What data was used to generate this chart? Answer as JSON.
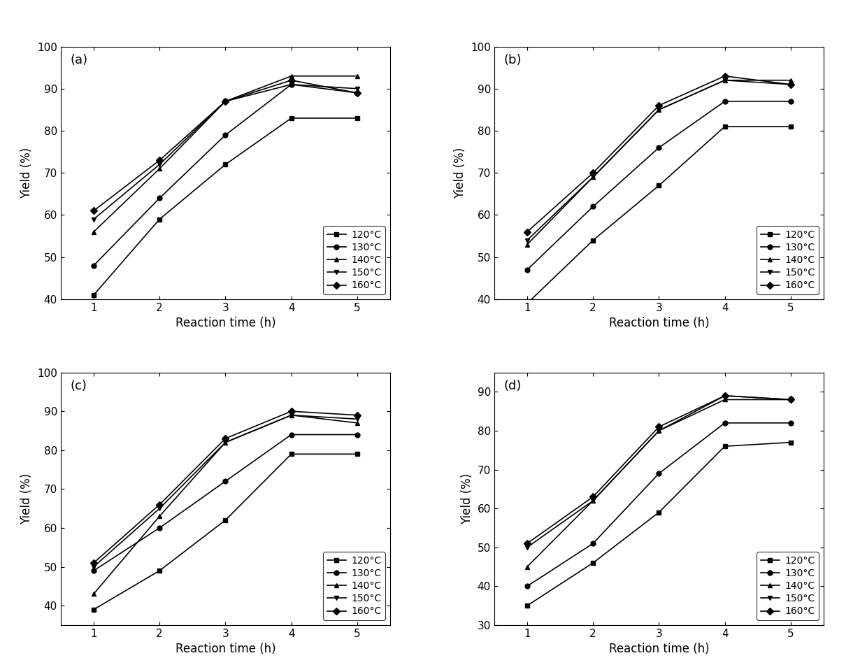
{
  "x": [
    1,
    2,
    3,
    4,
    5
  ],
  "panels": [
    {
      "label": "(a)",
      "ylim": [
        40,
        100
      ],
      "yticks": [
        40,
        50,
        60,
        70,
        80,
        90,
        100
      ],
      "series": {
        "120": [
          41,
          59,
          72,
          83,
          83
        ],
        "130": [
          48,
          64,
          79,
          91,
          89
        ],
        "140": [
          56,
          71,
          87,
          93,
          93
        ],
        "150": [
          59,
          72,
          87,
          91,
          90
        ],
        "160": [
          61,
          73,
          87,
          92,
          89
        ]
      }
    },
    {
      "label": "(b)",
      "ylim": [
        40,
        100
      ],
      "yticks": [
        40,
        50,
        60,
        70,
        80,
        90,
        100
      ],
      "series": {
        "120": [
          39,
          54,
          67,
          81,
          81
        ],
        "130": [
          47,
          62,
          76,
          87,
          87
        ],
        "140": [
          53,
          69,
          85,
          92,
          92
        ],
        "150": [
          54,
          69,
          85,
          92,
          91
        ],
        "160": [
          56,
          70,
          86,
          93,
          91
        ]
      }
    },
    {
      "label": "(c)",
      "ylim": [
        35,
        100
      ],
      "yticks": [
        40,
        50,
        60,
        70,
        80,
        90,
        100
      ],
      "series": {
        "120": [
          39,
          49,
          62,
          79,
          79
        ],
        "130": [
          49,
          60,
          72,
          84,
          84
        ],
        "140": [
          43,
          63,
          82,
          89,
          87
        ],
        "150": [
          50,
          65,
          82,
          89,
          88
        ],
        "160": [
          51,
          66,
          83,
          90,
          89
        ]
      }
    },
    {
      "label": "(d)",
      "ylim": [
        30,
        95
      ],
      "yticks": [
        30,
        40,
        50,
        60,
        70,
        80,
        90
      ],
      "series": {
        "120": [
          35,
          46,
          59,
          76,
          77
        ],
        "130": [
          40,
          51,
          69,
          82,
          82
        ],
        "140": [
          45,
          62,
          80,
          88,
          88
        ],
        "150": [
          50,
          62,
          80,
          89,
          88
        ],
        "160": [
          51,
          63,
          81,
          89,
          88
        ]
      }
    }
  ],
  "temperatures": [
    "120",
    "130",
    "140",
    "150",
    "160"
  ],
  "markers": [
    "s",
    "o",
    "^",
    "v",
    "D"
  ],
  "xlabel": "Reaction time (h)",
  "ylabel": "Yield (%)",
  "legend_labels": [
    "120°C",
    "130°C",
    "140°C",
    "150°C",
    "160°C"
  ],
  "linewidth": 1.2,
  "markersize": 5,
  "label_fontsize": 12,
  "tick_fontsize": 11,
  "legend_fontsize": 10,
  "panel_label_fontsize": 13
}
